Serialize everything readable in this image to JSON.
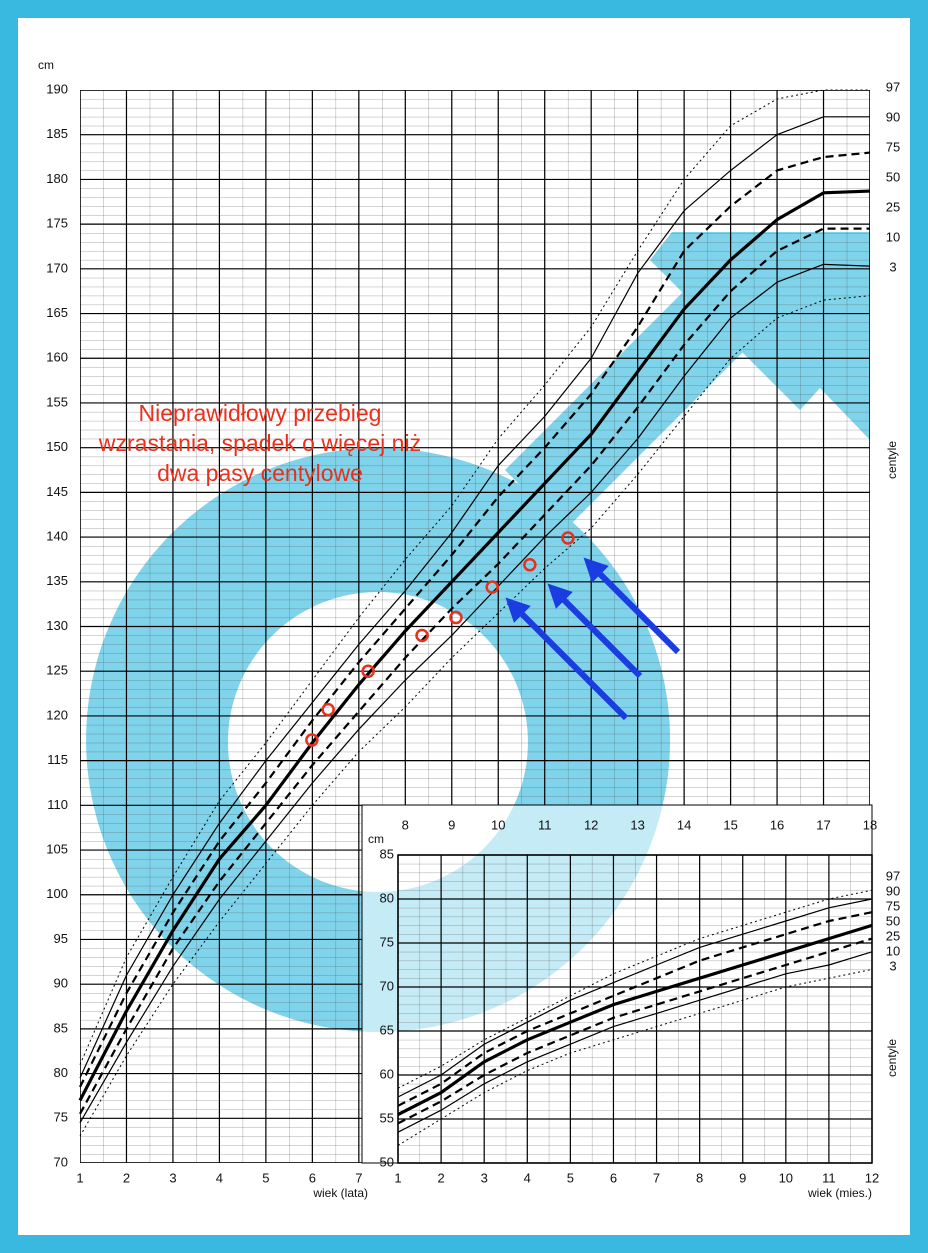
{
  "chart_data": [
    {
      "type": "line",
      "y_label": "cm",
      "x_label": "wiek (lata)",
      "legend_title": "centyle",
      "annotation": "Nieprawidłowy przebieg wzrastania, spadek o więcej niż dwa pasy centylowe",
      "x": [
        1,
        2,
        3,
        4,
        5,
        6,
        7,
        8,
        9,
        10,
        11,
        12,
        13,
        14,
        15,
        16,
        17,
        18
      ],
      "xlim": [
        1,
        18
      ],
      "xticks": [
        1,
        2,
        3,
        4,
        5,
        6,
        7,
        8,
        9,
        10,
        11,
        12,
        13,
        14,
        15,
        16,
        17,
        18
      ],
      "ylim": [
        70,
        190
      ],
      "yticks": [
        70,
        75,
        80,
        85,
        90,
        95,
        100,
        105,
        110,
        115,
        120,
        125,
        130,
        135,
        140,
        145,
        150,
        155,
        160,
        165,
        170,
        175,
        180,
        185,
        190
      ],
      "grid": true,
      "series": [
        {
          "name": "97",
          "color": "#000000",
          "style": "dotted",
          "values": [
            81,
            93,
            102,
            110.5,
            117,
            124,
            131,
            137.5,
            143.5,
            151,
            157,
            163.5,
            172,
            180,
            186,
            189,
            190,
            190
          ]
        },
        {
          "name": "90",
          "color": "#000000",
          "style": "solid",
          "values": [
            79.5,
            91,
            100,
            108,
            115,
            121.5,
            128,
            134,
            140.5,
            148,
            153.5,
            160,
            169.5,
            176.5,
            181,
            185,
            187,
            187
          ]
        },
        {
          "name": "75",
          "color": "#000000",
          "style": "dashed",
          "values": [
            78.5,
            89,
            98,
            106,
            112.5,
            119.5,
            126,
            132,
            138,
            144.5,
            150,
            156,
            163.5,
            172,
            177,
            181,
            182.5,
            183
          ]
        },
        {
          "name": "50",
          "color": "#000000",
          "style": "bold",
          "values": [
            77,
            87,
            96,
            104,
            110,
            117,
            123.5,
            129.5,
            135,
            140.5,
            146,
            151.5,
            158.5,
            165.5,
            171,
            175.5,
            178.5,
            178.7
          ]
        },
        {
          "name": "25",
          "color": "#000000",
          "style": "dashed",
          "values": [
            75.5,
            85,
            94,
            101.5,
            108,
            114.5,
            120.5,
            126.5,
            132,
            137,
            142.5,
            148,
            154.5,
            161.5,
            167.5,
            172,
            174.5,
            174.5
          ]
        },
        {
          "name": "10",
          "color": "#000000",
          "style": "solid",
          "values": [
            74.5,
            83.5,
            92,
            99.5,
            106,
            112.5,
            118.5,
            124,
            129,
            134.5,
            140,
            145,
            151,
            158,
            164.5,
            168.5,
            170.5,
            170.3
          ]
        },
        {
          "name": "3",
          "color": "#000000",
          "style": "dotted",
          "values": [
            73,
            82,
            90,
            97,
            103.5,
            110,
            116,
            121,
            126.5,
            131.5,
            136.5,
            141,
            147,
            153.5,
            160,
            164.5,
            166.5,
            167
          ]
        }
      ],
      "measurements": {
        "color": "#e8301c",
        "x": [
          5.99,
          6.34,
          7.2,
          8.36,
          9.09,
          9.87,
          10.68,
          11.5
        ],
        "y": [
          117.3,
          120.7,
          125,
          129,
          131,
          134.4,
          136.9,
          139.9
        ]
      }
    },
    {
      "type": "line",
      "y_label": "cm",
      "x_label": "wiek (mies.)",
      "legend_title": "centyle",
      "x": [
        1,
        2,
        3,
        4,
        5,
        6,
        7,
        8,
        9,
        10,
        11,
        12
      ],
      "xlim": [
        1,
        12
      ],
      "xticks": [
        1,
        2,
        3,
        4,
        5,
        6,
        7,
        8,
        9,
        10,
        11,
        12
      ],
      "ylim": [
        50,
        85
      ],
      "yticks": [
        50,
        55,
        60,
        65,
        70,
        75,
        80,
        85
      ],
      "grid": true,
      "series": [
        {
          "name": "97",
          "color": "#000000",
          "style": "dotted",
          "values": [
            58.5,
            61,
            64,
            66.5,
            69,
            71.5,
            73.5,
            75.5,
            77,
            78.5,
            80,
            81
          ]
        },
        {
          "name": "90",
          "color": "#000000",
          "style": "solid",
          "values": [
            57.5,
            60,
            63.5,
            66,
            68.5,
            70.5,
            72.5,
            74.5,
            76,
            77.5,
            79,
            80
          ]
        },
        {
          "name": "75",
          "color": "#000000",
          "style": "dashed",
          "values": [
            56.5,
            59,
            62.5,
            65,
            67,
            69,
            71,
            73,
            74.5,
            76,
            77.5,
            78.5
          ]
        },
        {
          "name": "50",
          "color": "#000000",
          "style": "bold",
          "values": [
            55.5,
            58,
            61.5,
            64,
            66,
            68,
            69.5,
            71,
            72.5,
            74,
            75.5,
            77
          ]
        },
        {
          "name": "25",
          "color": "#000000",
          "style": "dashed",
          "values": [
            54.5,
            57,
            60,
            62.5,
            64.5,
            66.5,
            68,
            69.5,
            71,
            72.5,
            74,
            75.5
          ]
        },
        {
          "name": "10",
          "color": "#000000",
          "style": "solid",
          "values": [
            53.5,
            56,
            59,
            61.5,
            63.5,
            65.5,
            67,
            68.5,
            70,
            71.5,
            72.5,
            74
          ]
        },
        {
          "name": "3",
          "color": "#000000",
          "style": "dotted",
          "values": [
            52,
            55,
            58,
            60.5,
            62.5,
            64,
            65.5,
            67,
            68.5,
            70,
            71,
            72
          ]
        }
      ]
    }
  ]
}
